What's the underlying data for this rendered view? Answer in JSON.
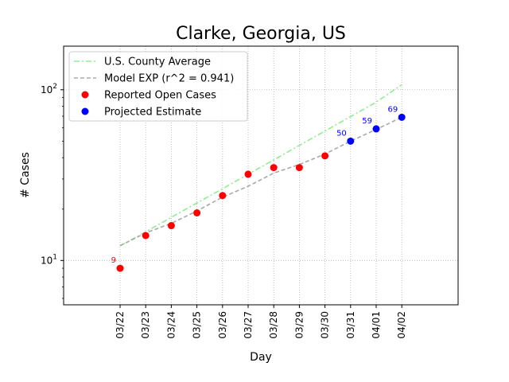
{
  "chart_data": {
    "type": "line",
    "title": "Clarke, Georgia, US",
    "xlabel": "Day",
    "ylabel": "# Cases",
    "yscale": "log",
    "ylim": [
      5.5,
      180
    ],
    "grid": true,
    "legend_position": "top-left",
    "categories": [
      "03/22",
      "03/23",
      "03/24",
      "03/25",
      "03/26",
      "03/27",
      "03/28",
      "03/29",
      "03/30",
      "03/31",
      "04/01",
      "04/02"
    ],
    "y_ticks": [
      {
        "value": 10,
        "base": "10",
        "exp": "1"
      },
      {
        "value": 100,
        "base": "10",
        "exp": "2"
      }
    ],
    "series": [
      {
        "name": "U.S. County Average",
        "style": "dashdot",
        "color": "#90ee90",
        "values": [
          12.2,
          14.7,
          17.9,
          21.7,
          26.3,
          32.0,
          38.8,
          47.2,
          57.3,
          69.6,
          84.6,
          107
        ]
      },
      {
        "name": "Model EXP (r^2 = 0.941)",
        "style": "dashed",
        "color": "#a9a9a9",
        "values": [
          12.2,
          14.5,
          16.5,
          19.5,
          23.5,
          27.2,
          32.5,
          36.5,
          42.0,
          50.0,
          58.5,
          69.0
        ]
      },
      {
        "name": "Reported Open Cases",
        "style": "marker",
        "color": "#ff0000",
        "values": [
          9,
          14,
          16,
          19,
          24,
          32,
          35,
          35,
          41,
          null,
          null,
          null
        ],
        "labels": [
          "9",
          null,
          null,
          null,
          null,
          null,
          null,
          null,
          null,
          null,
          null,
          null
        ]
      },
      {
        "name": "Projected Estimate",
        "style": "marker",
        "color": "#0000ff",
        "values": [
          null,
          null,
          null,
          null,
          null,
          null,
          null,
          null,
          null,
          50,
          59,
          69
        ],
        "labels": [
          null,
          null,
          null,
          null,
          null,
          null,
          null,
          null,
          null,
          "50",
          "59",
          "69"
        ]
      }
    ]
  }
}
